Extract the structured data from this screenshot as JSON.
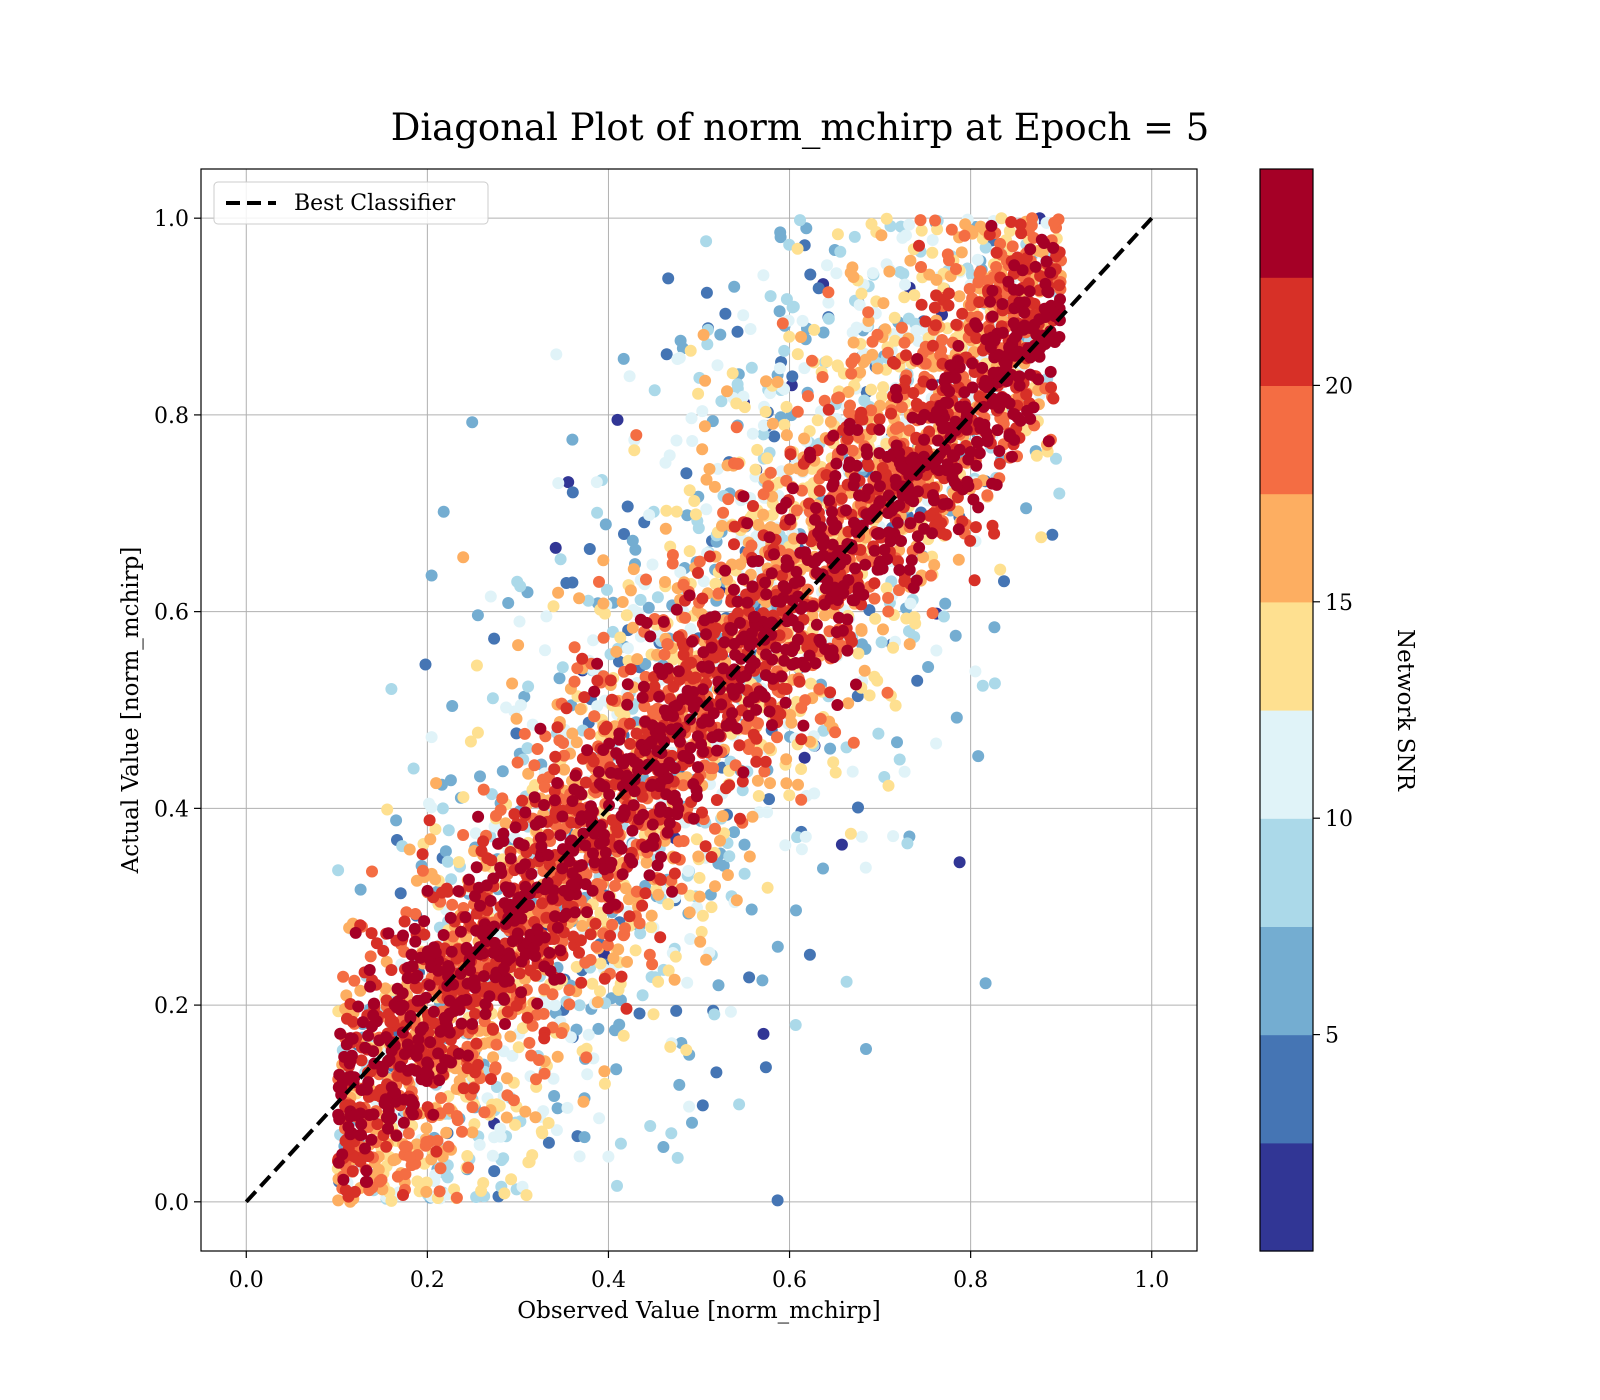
{
  "chart_data": {
    "type": "scatter",
    "title": "Diagonal Plot of norm_mchirp at Epoch = 5",
    "xlabel": "Observed Value [norm_mchirp]",
    "ylabel": "Actual Value [norm_mchirp]",
    "xlim": [
      -0.05,
      1.05
    ],
    "ylim": [
      -0.05,
      1.05
    ],
    "xticks": [
      "0.0",
      "0.2",
      "0.4",
      "0.6",
      "0.8",
      "1.0"
    ],
    "yticks": [
      "0.0",
      "0.2",
      "0.4",
      "0.6",
      "0.8",
      "1.0"
    ],
    "x_tick_values": [
      0,
      0.2,
      0.4,
      0.6,
      0.8,
      1.0
    ],
    "y_tick_values": [
      0,
      0.2,
      0.4,
      0.6,
      0.8,
      1.0
    ],
    "grid": true,
    "legend": {
      "placement": "top-left",
      "entries": [
        "Best Classifier"
      ]
    },
    "reference_line": {
      "name": "Best Classifier",
      "from": [
        0,
        0
      ],
      "to": [
        1,
        1
      ],
      "style": "dashed",
      "color": "#000000"
    },
    "colorbar": {
      "label": "Network SNR",
      "range": [
        0,
        25
      ],
      "tick_values": [
        5,
        10,
        15,
        20
      ],
      "ticks": [
        "5",
        "10",
        "15",
        "20"
      ],
      "colors": [
        "#313695",
        "#4575b4",
        "#74add1",
        "#abd9e9",
        "#e0f3f8",
        "#fee090",
        "#fdae61",
        "#f46d43",
        "#d73027",
        "#a50026"
      ]
    },
    "point_cloud": {
      "description_free": true,
      "x_range": [
        0.1,
        0.9
      ],
      "y_range": [
        0.0,
        1.0
      ],
      "high_snr_band_halfwidth": 0.08,
      "low_snr_offset_max": 0.25
    }
  }
}
